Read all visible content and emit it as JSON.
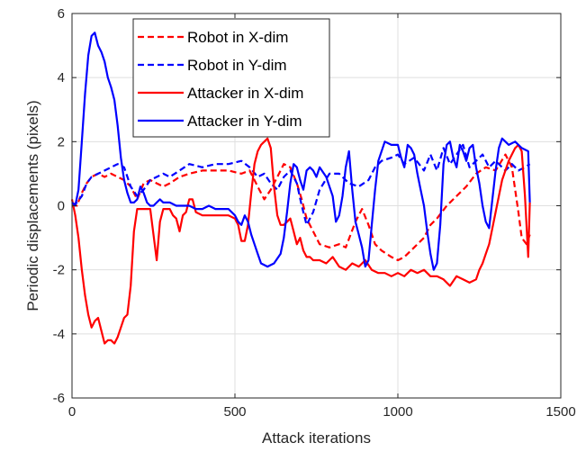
{
  "chart_data": {
    "type": "line",
    "title": "",
    "xlabel": "Attack iterations",
    "ylabel": "Periodic displacements (pixels)",
    "xlim": [
      0,
      1500
    ],
    "ylim": [
      -6,
      6
    ],
    "xticks": [
      0,
      500,
      1000,
      1500
    ],
    "yticks": [
      -6,
      -4,
      -2,
      0,
      2,
      4,
      6
    ],
    "grid": true,
    "legend_position": "top-left",
    "series": [
      {
        "name": "Robot in X-dim",
        "color": "#ff0000",
        "style": "dashed",
        "x": [
          0,
          15,
          30,
          45,
          60,
          80,
          100,
          120,
          140,
          160,
          180,
          200,
          220,
          240,
          260,
          280,
          300,
          330,
          360,
          400,
          440,
          480,
          520,
          545,
          570,
          590,
          610,
          630,
          650,
          670,
          690,
          705,
          720,
          740,
          760,
          790,
          820,
          840,
          855,
          870,
          890,
          910,
          930,
          950,
          980,
          1000,
          1020,
          1050,
          1080,
          1100,
          1120,
          1150,
          1180,
          1210,
          1240,
          1270,
          1300,
          1330,
          1350,
          1370,
          1380,
          1395,
          1405
        ],
        "y": [
          0.1,
          0.0,
          0.4,
          0.7,
          0.9,
          1.0,
          0.9,
          1.0,
          0.9,
          0.8,
          0.6,
          0.2,
          0.7,
          0.8,
          0.7,
          0.6,
          0.7,
          0.9,
          1.0,
          1.1,
          1.1,
          1.1,
          1.0,
          1.1,
          0.6,
          0.2,
          0.5,
          0.9,
          1.3,
          1.2,
          0.7,
          0.2,
          -0.4,
          -0.8,
          -1.2,
          -1.3,
          -1.2,
          -1.3,
          -0.9,
          -0.5,
          -0.1,
          -0.6,
          -1.2,
          -1.4,
          -1.6,
          -1.7,
          -1.6,
          -1.3,
          -1.0,
          -0.6,
          -0.4,
          0.0,
          0.3,
          0.6,
          1.0,
          1.2,
          1.1,
          1.6,
          1.2,
          -0.2,
          -1.0,
          -1.2,
          -0.9
        ]
      },
      {
        "name": "Robot in Y-dim",
        "color": "#0000ff",
        "style": "dashed",
        "x": [
          0,
          15,
          30,
          45,
          60,
          80,
          100,
          120,
          140,
          160,
          180,
          200,
          220,
          240,
          260,
          280,
          300,
          330,
          360,
          400,
          440,
          480,
          520,
          545,
          570,
          590,
          610,
          630,
          650,
          670,
          690,
          705,
          720,
          740,
          760,
          790,
          820,
          850,
          880,
          910,
          930,
          950,
          980,
          1000,
          1020,
          1050,
          1080,
          1100,
          1120,
          1140,
          1160,
          1180,
          1200,
          1220,
          1240,
          1260,
          1280,
          1300,
          1330,
          1350,
          1370,
          1390,
          1405
        ],
        "y": [
          0.0,
          0.1,
          0.3,
          0.7,
          0.9,
          1.0,
          1.1,
          1.2,
          1.3,
          1.2,
          0.6,
          0.3,
          0.5,
          0.8,
          0.9,
          1.0,
          0.9,
          1.1,
          1.3,
          1.2,
          1.3,
          1.3,
          1.4,
          1.2,
          0.9,
          1.0,
          0.7,
          0.5,
          0.9,
          1.1,
          0.7,
          0.0,
          -0.6,
          -0.2,
          0.5,
          1.0,
          1.0,
          0.7,
          0.6,
          0.8,
          1.2,
          1.4,
          1.5,
          1.6,
          1.3,
          1.5,
          1.1,
          1.6,
          1.1,
          1.8,
          1.3,
          1.6,
          1.9,
          1.2,
          1.4,
          1.6,
          1.2,
          1.4,
          1.1,
          1.3,
          1.1,
          1.2,
          1.3
        ]
      },
      {
        "name": "Attacker in X-dim",
        "color": "#ff0000",
        "style": "solid",
        "x": [
          0,
          10,
          20,
          30,
          40,
          50,
          60,
          70,
          80,
          90,
          100,
          110,
          120,
          130,
          140,
          150,
          160,
          170,
          180,
          190,
          200,
          210,
          220,
          230,
          240,
          250,
          260,
          270,
          280,
          290,
          300,
          310,
          320,
          330,
          340,
          350,
          360,
          370,
          380,
          400,
          420,
          440,
          460,
          480,
          500,
          510,
          520,
          530,
          540,
          550,
          560,
          570,
          580,
          590,
          600,
          610,
          620,
          630,
          640,
          650,
          660,
          670,
          680,
          690,
          700,
          710,
          720,
          730,
          740,
          760,
          780,
          800,
          820,
          840,
          860,
          880,
          900,
          920,
          940,
          960,
          980,
          1000,
          1020,
          1040,
          1060,
          1080,
          1100,
          1120,
          1140,
          1160,
          1180,
          1200,
          1220,
          1240,
          1250,
          1260,
          1270,
          1280,
          1300,
          1320,
          1340,
          1360,
          1370,
          1380,
          1390,
          1400,
          1405
        ],
        "y": [
          0.2,
          -0.3,
          -1.0,
          -2.0,
          -2.8,
          -3.4,
          -3.8,
          -3.6,
          -3.5,
          -3.9,
          -4.3,
          -4.2,
          -4.2,
          -4.3,
          -4.1,
          -3.8,
          -3.5,
          -3.4,
          -2.5,
          -0.8,
          -0.1,
          -0.1,
          -0.1,
          -0.1,
          -0.1,
          -0.9,
          -1.7,
          -0.5,
          -0.1,
          -0.1,
          -0.1,
          -0.3,
          -0.4,
          -0.8,
          -0.3,
          -0.2,
          0.2,
          0.2,
          -0.2,
          -0.3,
          -0.3,
          -0.3,
          -0.3,
          -0.3,
          -0.4,
          -0.6,
          -1.1,
          -1.1,
          -0.6,
          0.4,
          1.3,
          1.7,
          1.9,
          2.0,
          2.1,
          1.8,
          0.6,
          -0.3,
          -0.6,
          -0.6,
          -0.5,
          -0.4,
          -0.8,
          -1.2,
          -1.0,
          -1.4,
          -1.6,
          -1.6,
          -1.7,
          -1.7,
          -1.8,
          -1.6,
          -1.9,
          -2.0,
          -1.8,
          -1.9,
          -1.7,
          -2.0,
          -2.1,
          -2.1,
          -2.2,
          -2.1,
          -2.2,
          -2.0,
          -2.1,
          -2.0,
          -2.2,
          -2.2,
          -2.3,
          -2.5,
          -2.2,
          -2.3,
          -2.4,
          -2.3,
          -2.0,
          -1.8,
          -1.5,
          -1.2,
          -0.2,
          0.8,
          1.4,
          1.8,
          1.9,
          1.7,
          0.3,
          -1.6,
          0.1
        ]
      },
      {
        "name": "Attacker in Y-dim",
        "color": "#0000ff",
        "style": "solid",
        "x": [
          0,
          10,
          20,
          30,
          40,
          50,
          60,
          70,
          80,
          90,
          100,
          110,
          120,
          130,
          140,
          150,
          160,
          170,
          180,
          190,
          200,
          210,
          220,
          230,
          240,
          250,
          260,
          270,
          280,
          300,
          320,
          340,
          360,
          380,
          400,
          420,
          440,
          460,
          480,
          500,
          510,
          520,
          530,
          540,
          550,
          560,
          570,
          580,
          600,
          620,
          640,
          650,
          660,
          670,
          680,
          690,
          700,
          710,
          720,
          730,
          740,
          750,
          760,
          780,
          790,
          800,
          810,
          820,
          830,
          840,
          850,
          860,
          870,
          880,
          890,
          900,
          910,
          920,
          930,
          940,
          960,
          980,
          1000,
          1010,
          1020,
          1030,
          1040,
          1050,
          1060,
          1070,
          1080,
          1090,
          1100,
          1110,
          1120,
          1130,
          1140,
          1150,
          1160,
          1170,
          1180,
          1190,
          1200,
          1210,
          1220,
          1230,
          1240,
          1250,
          1260,
          1270,
          1280,
          1290,
          1300,
          1310,
          1320,
          1330,
          1340,
          1360,
          1380,
          1400,
          1405
        ],
        "y": [
          0.1,
          0.0,
          0.5,
          2.0,
          3.5,
          4.7,
          5.3,
          5.4,
          5.0,
          4.8,
          4.5,
          4.0,
          3.7,
          3.3,
          2.5,
          1.5,
          0.8,
          0.4,
          0.1,
          0.1,
          0.2,
          0.6,
          0.4,
          0.1,
          0.0,
          0.0,
          0.1,
          0.2,
          0.1,
          0.1,
          0.0,
          0.0,
          0.0,
          -0.1,
          -0.1,
          0.0,
          -0.1,
          -0.1,
          -0.1,
          -0.3,
          -0.5,
          -0.6,
          -0.3,
          -0.5,
          -0.9,
          -1.2,
          -1.5,
          -1.8,
          -1.9,
          -1.8,
          -1.5,
          -1.0,
          -0.2,
          0.7,
          1.3,
          1.2,
          0.8,
          0.5,
          1.1,
          1.2,
          1.1,
          0.9,
          1.2,
          0.9,
          0.6,
          0.3,
          -0.5,
          -0.3,
          0.3,
          1.2,
          1.7,
          0.5,
          -0.5,
          -0.9,
          -1.3,
          -1.9,
          -1.7,
          -0.6,
          0.5,
          1.4,
          2.0,
          1.9,
          1.9,
          1.5,
          1.2,
          1.9,
          1.8,
          1.6,
          1.0,
          0.5,
          0.0,
          -0.8,
          -1.5,
          -2.0,
          -1.8,
          -0.6,
          1.3,
          1.9,
          2.0,
          1.5,
          1.2,
          1.9,
          1.7,
          1.4,
          1.8,
          1.9,
          1.2,
          0.7,
          0.0,
          -0.5,
          -0.7,
          0.2,
          1.1,
          1.8,
          2.1,
          2.0,
          1.9,
          2.0,
          1.8,
          1.7,
          0.1
        ]
      }
    ]
  }
}
